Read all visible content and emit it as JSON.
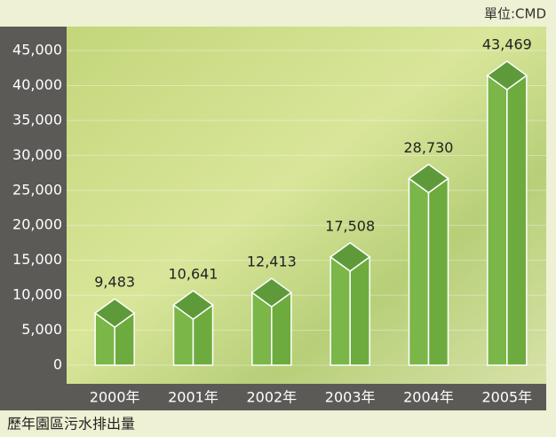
{
  "chart_data": {
    "type": "bar",
    "title": "歷年園區污水排出量",
    "unit": "單位:CMD",
    "categories": [
      "2000年",
      "2001年",
      "2002年",
      "2003年",
      "2004年",
      "2005年"
    ],
    "values": [
      9483,
      10641,
      12413,
      17508,
      28730,
      43469
    ],
    "value_labels": [
      "9,483",
      "10,641",
      "12,413",
      "17,508",
      "28,730",
      "43,469"
    ],
    "color": "#7ab648",
    "ylim": [
      0,
      45000
    ],
    "yticks": [
      0,
      {
        "value": 5000,
        "label": "5,000"
      },
      {
        "value": 10000,
        "label": "10,000"
      },
      {
        "value": 15000,
        "label": "15,000"
      },
      {
        "value": 20000,
        "label": "20,000"
      },
      {
        "value": 25000,
        "label": "25,000"
      },
      {
        "value": 30000,
        "label": "30,000"
      },
      {
        "value": 35000,
        "label": "35,000"
      },
      {
        "value": 40000,
        "label": "40,000"
      },
      {
        "value": 45000,
        "label": "45,000"
      }
    ],
    "grid": true
  }
}
